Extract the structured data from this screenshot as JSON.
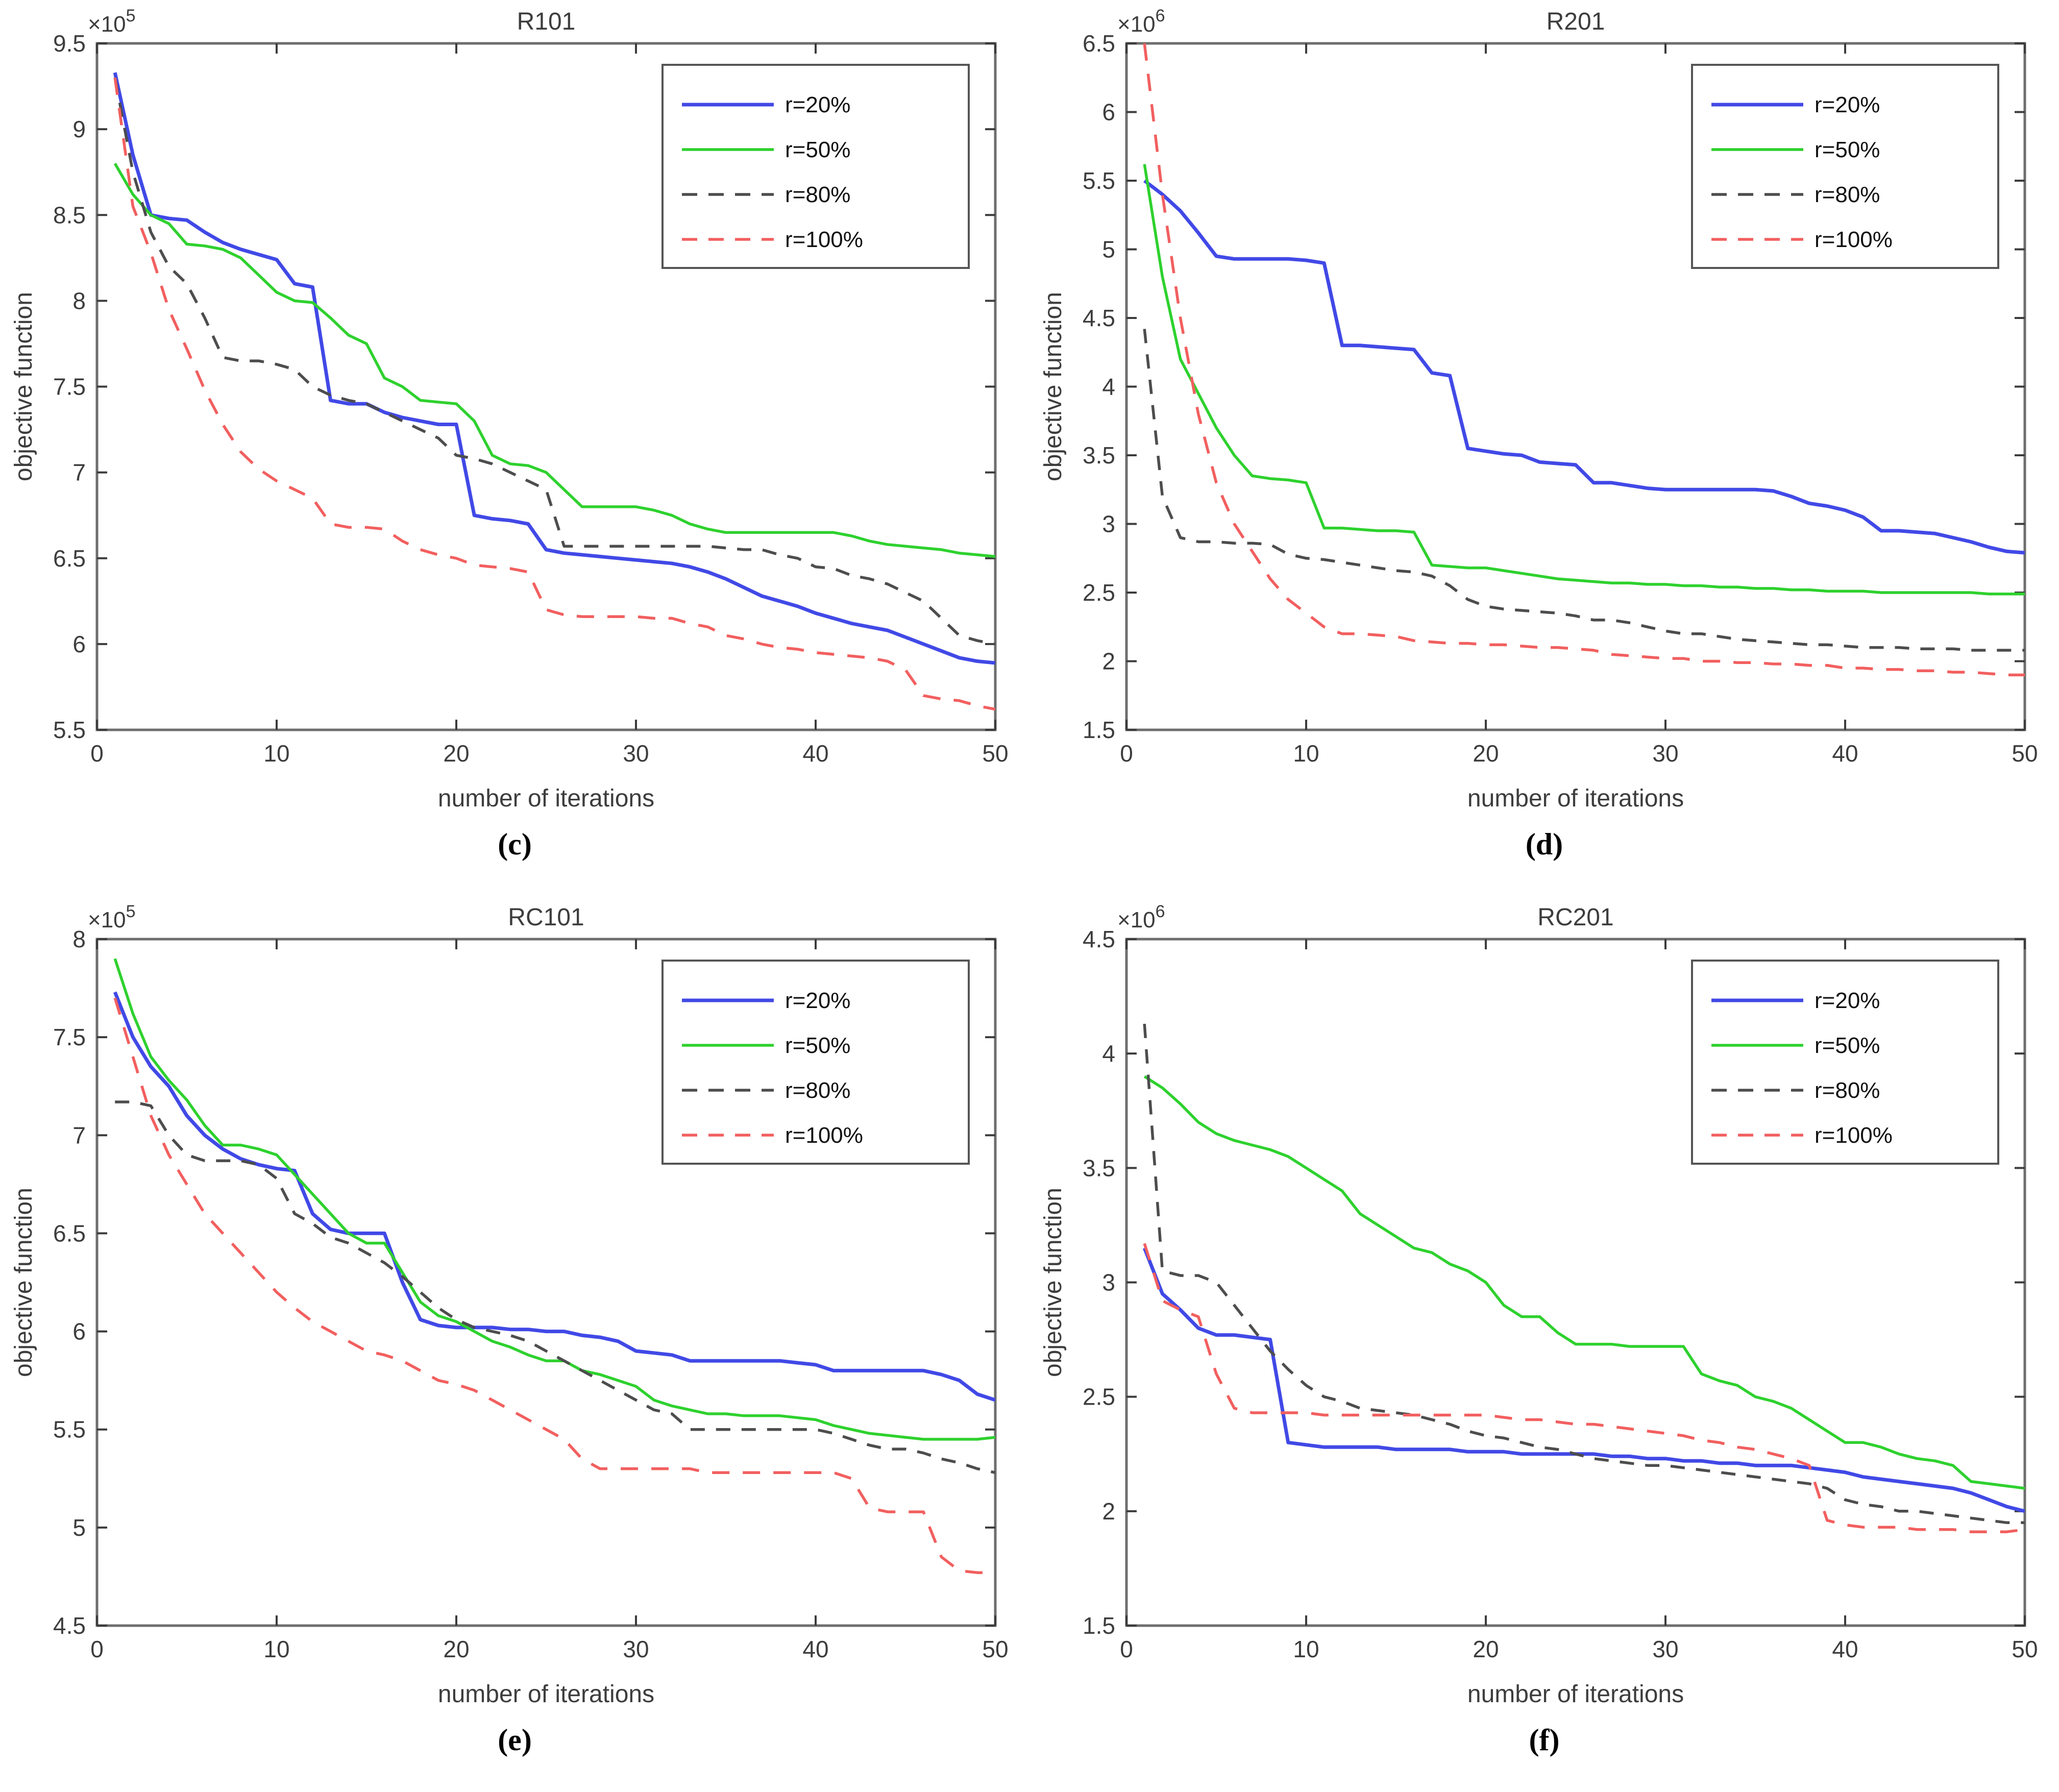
{
  "figure": {
    "xlabel": "number of iterations",
    "ylabel": "objective function",
    "legend_position": "top-right",
    "grid": false,
    "axis_color": "#6e6e6e",
    "text_color": "#3d3d3d",
    "series_colors": {
      "r20": "#4149e6",
      "r50": "#2ed12e",
      "r80": "#4d4d4d",
      "r100": "#f25f5f"
    }
  },
  "chart_data": [
    {
      "type": "line",
      "title": "R101",
      "caption": "(c)",
      "xlabel": "number of iterations",
      "ylabel": "objective function",
      "exponent_prefix": "×10",
      "exponent": "5",
      "xlim": [
        0,
        50
      ],
      "ylim": [
        5.5,
        9.5
      ],
      "xticks": [
        0,
        10,
        20,
        30,
        40,
        50
      ],
      "yticks": [
        5.5,
        6,
        6.5,
        7,
        7.5,
        8,
        8.5,
        9,
        9.5
      ],
      "x_start": 1,
      "x_step": 1,
      "series": [
        {
          "name": "r=20%",
          "color": "#4149e6",
          "style": "solid",
          "values": [
            9.33,
            8.85,
            8.5,
            8.48,
            8.47,
            8.4,
            8.34,
            8.3,
            8.27,
            8.24,
            8.1,
            8.08,
            7.42,
            7.4,
            7.4,
            7.35,
            7.32,
            7.3,
            7.28,
            7.28,
            6.75,
            6.73,
            6.72,
            6.7,
            6.55,
            6.53,
            6.52,
            6.51,
            6.5,
            6.49,
            6.48,
            6.47,
            6.45,
            6.42,
            6.38,
            6.33,
            6.28,
            6.25,
            6.22,
            6.18,
            6.15,
            6.12,
            6.1,
            6.08,
            6.04,
            6.0,
            5.96,
            5.92,
            5.9,
            5.89
          ]
        },
        {
          "name": "r=50%",
          "color": "#2ed12e",
          "style": "solid",
          "values": [
            8.8,
            8.62,
            8.5,
            8.45,
            8.33,
            8.32,
            8.3,
            8.25,
            8.15,
            8.05,
            8.0,
            7.99,
            7.9,
            7.8,
            7.75,
            7.55,
            7.5,
            7.42,
            7.41,
            7.4,
            7.3,
            7.1,
            7.05,
            7.04,
            7.0,
            6.9,
            6.8,
            6.8,
            6.8,
            6.8,
            6.78,
            6.75,
            6.7,
            6.67,
            6.65,
            6.65,
            6.65,
            6.65,
            6.65,
            6.65,
            6.65,
            6.63,
            6.6,
            6.58,
            6.57,
            6.56,
            6.55,
            6.53,
            6.52,
            6.51
          ]
        },
        {
          "name": "r=80%",
          "color": "#4d4d4d",
          "style": "dashed",
          "values": [
            9.3,
            8.75,
            8.4,
            8.2,
            8.1,
            7.9,
            7.67,
            7.65,
            7.65,
            7.63,
            7.6,
            7.5,
            7.45,
            7.42,
            7.4,
            7.35,
            7.3,
            7.25,
            7.2,
            7.1,
            7.08,
            7.05,
            7.0,
            6.95,
            6.9,
            6.57,
            6.57,
            6.57,
            6.57,
            6.57,
            6.57,
            6.57,
            6.57,
            6.57,
            6.56,
            6.55,
            6.55,
            6.52,
            6.5,
            6.45,
            6.44,
            6.4,
            6.38,
            6.35,
            6.3,
            6.25,
            6.15,
            6.05,
            6.02,
            6.0
          ]
        },
        {
          "name": "r=100%",
          "color": "#f25f5f",
          "style": "dashed",
          "values": [
            9.3,
            8.55,
            8.28,
            7.95,
            7.72,
            7.48,
            7.28,
            7.12,
            7.02,
            6.95,
            6.9,
            6.85,
            6.7,
            6.68,
            6.68,
            6.67,
            6.6,
            6.55,
            6.52,
            6.5,
            6.46,
            6.45,
            6.44,
            6.42,
            6.2,
            6.17,
            6.16,
            6.16,
            6.16,
            6.16,
            6.15,
            6.15,
            6.12,
            6.1,
            6.05,
            6.03,
            6.0,
            5.98,
            5.97,
            5.95,
            5.94,
            5.93,
            5.92,
            5.9,
            5.85,
            5.7,
            5.68,
            5.67,
            5.64,
            5.62
          ]
        }
      ]
    },
    {
      "type": "line",
      "title": "R201",
      "caption": "(d)",
      "xlabel": "number of iterations",
      "ylabel": "objective function",
      "exponent_prefix": "×10",
      "exponent": "6",
      "xlim": [
        0,
        50
      ],
      "ylim": [
        1.5,
        6.5
      ],
      "xticks": [
        0,
        10,
        20,
        30,
        40,
        50
      ],
      "yticks": [
        1.5,
        2,
        2.5,
        3,
        3.5,
        4,
        4.5,
        5,
        5.5,
        6,
        6.5
      ],
      "x_start": 1,
      "x_step": 1,
      "series": [
        {
          "name": "r=20%",
          "color": "#4149e6",
          "style": "solid",
          "values": [
            5.5,
            5.4,
            5.28,
            5.12,
            4.95,
            4.93,
            4.93,
            4.93,
            4.93,
            4.92,
            4.9,
            4.3,
            4.3,
            4.29,
            4.28,
            4.27,
            4.1,
            4.08,
            3.55,
            3.53,
            3.51,
            3.5,
            3.45,
            3.44,
            3.43,
            3.3,
            3.3,
            3.28,
            3.26,
            3.25,
            3.25,
            3.25,
            3.25,
            3.25,
            3.25,
            3.24,
            3.2,
            3.15,
            3.13,
            3.1,
            3.05,
            2.95,
            2.95,
            2.94,
            2.93,
            2.9,
            2.87,
            2.83,
            2.8,
            2.79
          ]
        },
        {
          "name": "r=50%",
          "color": "#2ed12e",
          "style": "solid",
          "values": [
            5.62,
            4.8,
            4.2,
            3.95,
            3.7,
            3.5,
            3.35,
            3.33,
            3.32,
            3.3,
            2.97,
            2.97,
            2.96,
            2.95,
            2.95,
            2.94,
            2.7,
            2.69,
            2.68,
            2.68,
            2.66,
            2.64,
            2.62,
            2.6,
            2.59,
            2.58,
            2.57,
            2.57,
            2.56,
            2.56,
            2.55,
            2.55,
            2.54,
            2.54,
            2.53,
            2.53,
            2.52,
            2.52,
            2.51,
            2.51,
            2.51,
            2.5,
            2.5,
            2.5,
            2.5,
            2.5,
            2.5,
            2.49,
            2.49,
            2.49
          ]
        },
        {
          "name": "r=80%",
          "color": "#4d4d4d",
          "style": "dashed",
          "values": [
            4.42,
            3.2,
            2.9,
            2.87,
            2.87,
            2.86,
            2.86,
            2.85,
            2.78,
            2.75,
            2.74,
            2.72,
            2.7,
            2.68,
            2.66,
            2.65,
            2.62,
            2.55,
            2.45,
            2.4,
            2.38,
            2.37,
            2.36,
            2.35,
            2.33,
            2.3,
            2.3,
            2.28,
            2.25,
            2.22,
            2.2,
            2.2,
            2.18,
            2.16,
            2.15,
            2.14,
            2.13,
            2.12,
            2.12,
            2.11,
            2.1,
            2.1,
            2.1,
            2.09,
            2.09,
            2.09,
            2.08,
            2.08,
            2.08,
            2.08
          ]
        },
        {
          "name": "r=100%",
          "color": "#f25f5f",
          "style": "dashed",
          "values": [
            6.5,
            5.4,
            4.5,
            3.8,
            3.3,
            3.0,
            2.8,
            2.6,
            2.45,
            2.35,
            2.25,
            2.2,
            2.2,
            2.19,
            2.18,
            2.15,
            2.14,
            2.13,
            2.13,
            2.12,
            2.12,
            2.11,
            2.1,
            2.1,
            2.09,
            2.08,
            2.05,
            2.04,
            2.03,
            2.02,
            2.02,
            2.0,
            2.0,
            1.99,
            1.99,
            1.98,
            1.98,
            1.97,
            1.97,
            1.95,
            1.95,
            1.94,
            1.94,
            1.93,
            1.93,
            1.92,
            1.92,
            1.91,
            1.9,
            1.9
          ]
        }
      ]
    },
    {
      "type": "line",
      "title": "RC101",
      "caption": "(e)",
      "xlabel": "number of iterations",
      "ylabel": "objective function",
      "exponent_prefix": "×10",
      "exponent": "5",
      "xlim": [
        0,
        50
      ],
      "ylim": [
        4.5,
        8
      ],
      "xticks": [
        0,
        10,
        20,
        30,
        40,
        50
      ],
      "yticks": [
        4.5,
        5,
        5.5,
        6,
        6.5,
        7,
        7.5,
        8
      ],
      "x_start": 1,
      "x_step": 1,
      "series": [
        {
          "name": "r=20%",
          "color": "#4149e6",
          "style": "solid",
          "values": [
            7.73,
            7.5,
            7.35,
            7.25,
            7.1,
            7.0,
            6.93,
            6.88,
            6.85,
            6.83,
            6.82,
            6.6,
            6.52,
            6.5,
            6.5,
            6.5,
            6.25,
            6.06,
            6.03,
            6.02,
            6.02,
            6.02,
            6.01,
            6.01,
            6.0,
            6.0,
            5.98,
            5.97,
            5.95,
            5.9,
            5.89,
            5.88,
            5.85,
            5.85,
            5.85,
            5.85,
            5.85,
            5.85,
            5.84,
            5.83,
            5.8,
            5.8,
            5.8,
            5.8,
            5.8,
            5.8,
            5.78,
            5.75,
            5.68,
            5.65
          ]
        },
        {
          "name": "r=50%",
          "color": "#2ed12e",
          "style": "solid",
          "values": [
            7.9,
            7.62,
            7.4,
            7.28,
            7.18,
            7.05,
            6.95,
            6.95,
            6.93,
            6.9,
            6.8,
            6.7,
            6.6,
            6.5,
            6.45,
            6.45,
            6.3,
            6.15,
            6.08,
            6.05,
            6.0,
            5.95,
            5.92,
            5.88,
            5.85,
            5.85,
            5.8,
            5.78,
            5.75,
            5.72,
            5.65,
            5.62,
            5.6,
            5.58,
            5.58,
            5.57,
            5.57,
            5.57,
            5.56,
            5.55,
            5.52,
            5.5,
            5.48,
            5.47,
            5.46,
            5.45,
            5.45,
            5.45,
            5.45,
            5.46
          ]
        },
        {
          "name": "r=80%",
          "color": "#4d4d4d",
          "style": "dashed",
          "values": [
            7.17,
            7.17,
            7.15,
            7.0,
            6.9,
            6.87,
            6.87,
            6.87,
            6.85,
            6.78,
            6.6,
            6.55,
            6.48,
            6.45,
            6.4,
            6.35,
            6.28,
            6.2,
            6.12,
            6.06,
            6.02,
            6.0,
            5.98,
            5.95,
            5.9,
            5.85,
            5.8,
            5.75,
            5.7,
            5.65,
            5.6,
            5.58,
            5.5,
            5.5,
            5.5,
            5.5,
            5.5,
            5.5,
            5.5,
            5.5,
            5.48,
            5.45,
            5.42,
            5.4,
            5.4,
            5.38,
            5.35,
            5.33,
            5.3,
            5.28
          ]
        },
        {
          "name": "r=100%",
          "color": "#f25f5f",
          "style": "dashed",
          "values": [
            7.7,
            7.4,
            7.1,
            6.9,
            6.75,
            6.6,
            6.5,
            6.4,
            6.3,
            6.2,
            6.12,
            6.05,
            6.0,
            5.95,
            5.9,
            5.88,
            5.85,
            5.8,
            5.75,
            5.73,
            5.7,
            5.65,
            5.6,
            5.55,
            5.5,
            5.45,
            5.35,
            5.3,
            5.3,
            5.3,
            5.3,
            5.3,
            5.3,
            5.28,
            5.28,
            5.28,
            5.28,
            5.28,
            5.28,
            5.28,
            5.28,
            5.25,
            5.1,
            5.08,
            5.08,
            5.08,
            4.85,
            4.78,
            4.77,
            4.77
          ]
        }
      ]
    },
    {
      "type": "line",
      "title": "RC201",
      "caption": "(f)",
      "xlabel": "number of iterations",
      "ylabel": "objective function",
      "exponent_prefix": "×10",
      "exponent": "6",
      "xlim": [
        0,
        50
      ],
      "ylim": [
        1.5,
        4.5
      ],
      "xticks": [
        0,
        10,
        20,
        30,
        40,
        50
      ],
      "yticks": [
        1.5,
        2,
        2.5,
        3,
        3.5,
        4,
        4.5
      ],
      "x_start": 1,
      "x_step": 1,
      "series": [
        {
          "name": "r=20%",
          "color": "#4149e6",
          "style": "solid",
          "values": [
            3.15,
            2.95,
            2.88,
            2.8,
            2.77,
            2.77,
            2.76,
            2.75,
            2.3,
            2.29,
            2.28,
            2.28,
            2.28,
            2.28,
            2.27,
            2.27,
            2.27,
            2.27,
            2.26,
            2.26,
            2.26,
            2.25,
            2.25,
            2.25,
            2.25,
            2.25,
            2.24,
            2.24,
            2.23,
            2.23,
            2.22,
            2.22,
            2.21,
            2.21,
            2.2,
            2.2,
            2.2,
            2.19,
            2.18,
            2.17,
            2.15,
            2.14,
            2.13,
            2.12,
            2.11,
            2.1,
            2.08,
            2.05,
            2.02,
            2.0
          ]
        },
        {
          "name": "r=50%",
          "color": "#2ed12e",
          "style": "solid",
          "values": [
            3.9,
            3.85,
            3.78,
            3.7,
            3.65,
            3.62,
            3.6,
            3.58,
            3.55,
            3.5,
            3.45,
            3.4,
            3.3,
            3.25,
            3.2,
            3.15,
            3.13,
            3.08,
            3.05,
            3.0,
            2.9,
            2.85,
            2.85,
            2.78,
            2.73,
            2.73,
            2.73,
            2.72,
            2.72,
            2.72,
            2.72,
            2.6,
            2.57,
            2.55,
            2.5,
            2.48,
            2.45,
            2.4,
            2.35,
            2.3,
            2.3,
            2.28,
            2.25,
            2.23,
            2.22,
            2.2,
            2.13,
            2.12,
            2.11,
            2.1
          ]
        },
        {
          "name": "r=80%",
          "color": "#4d4d4d",
          "style": "dashed",
          "values": [
            4.13,
            3.05,
            3.03,
            3.03,
            3.0,
            2.9,
            2.8,
            2.7,
            2.62,
            2.55,
            2.5,
            2.48,
            2.45,
            2.44,
            2.43,
            2.42,
            2.4,
            2.38,
            2.35,
            2.33,
            2.32,
            2.3,
            2.28,
            2.27,
            2.25,
            2.23,
            2.22,
            2.21,
            2.2,
            2.2,
            2.19,
            2.18,
            2.17,
            2.16,
            2.15,
            2.14,
            2.13,
            2.12,
            2.1,
            2.05,
            2.03,
            2.02,
            2.0,
            2.0,
            1.99,
            1.98,
            1.97,
            1.96,
            1.95,
            1.95
          ]
        },
        {
          "name": "r=100%",
          "color": "#f25f5f",
          "style": "dashed",
          "values": [
            3.17,
            2.92,
            2.88,
            2.85,
            2.6,
            2.45,
            2.43,
            2.43,
            2.43,
            2.43,
            2.42,
            2.42,
            2.42,
            2.42,
            2.42,
            2.42,
            2.42,
            2.42,
            2.42,
            2.42,
            2.41,
            2.4,
            2.4,
            2.39,
            2.38,
            2.38,
            2.37,
            2.36,
            2.35,
            2.34,
            2.33,
            2.31,
            2.3,
            2.28,
            2.27,
            2.25,
            2.23,
            2.2,
            1.96,
            1.94,
            1.93,
            1.93,
            1.93,
            1.92,
            1.92,
            1.92,
            1.91,
            1.91,
            1.91,
            1.92
          ]
        }
      ]
    }
  ]
}
